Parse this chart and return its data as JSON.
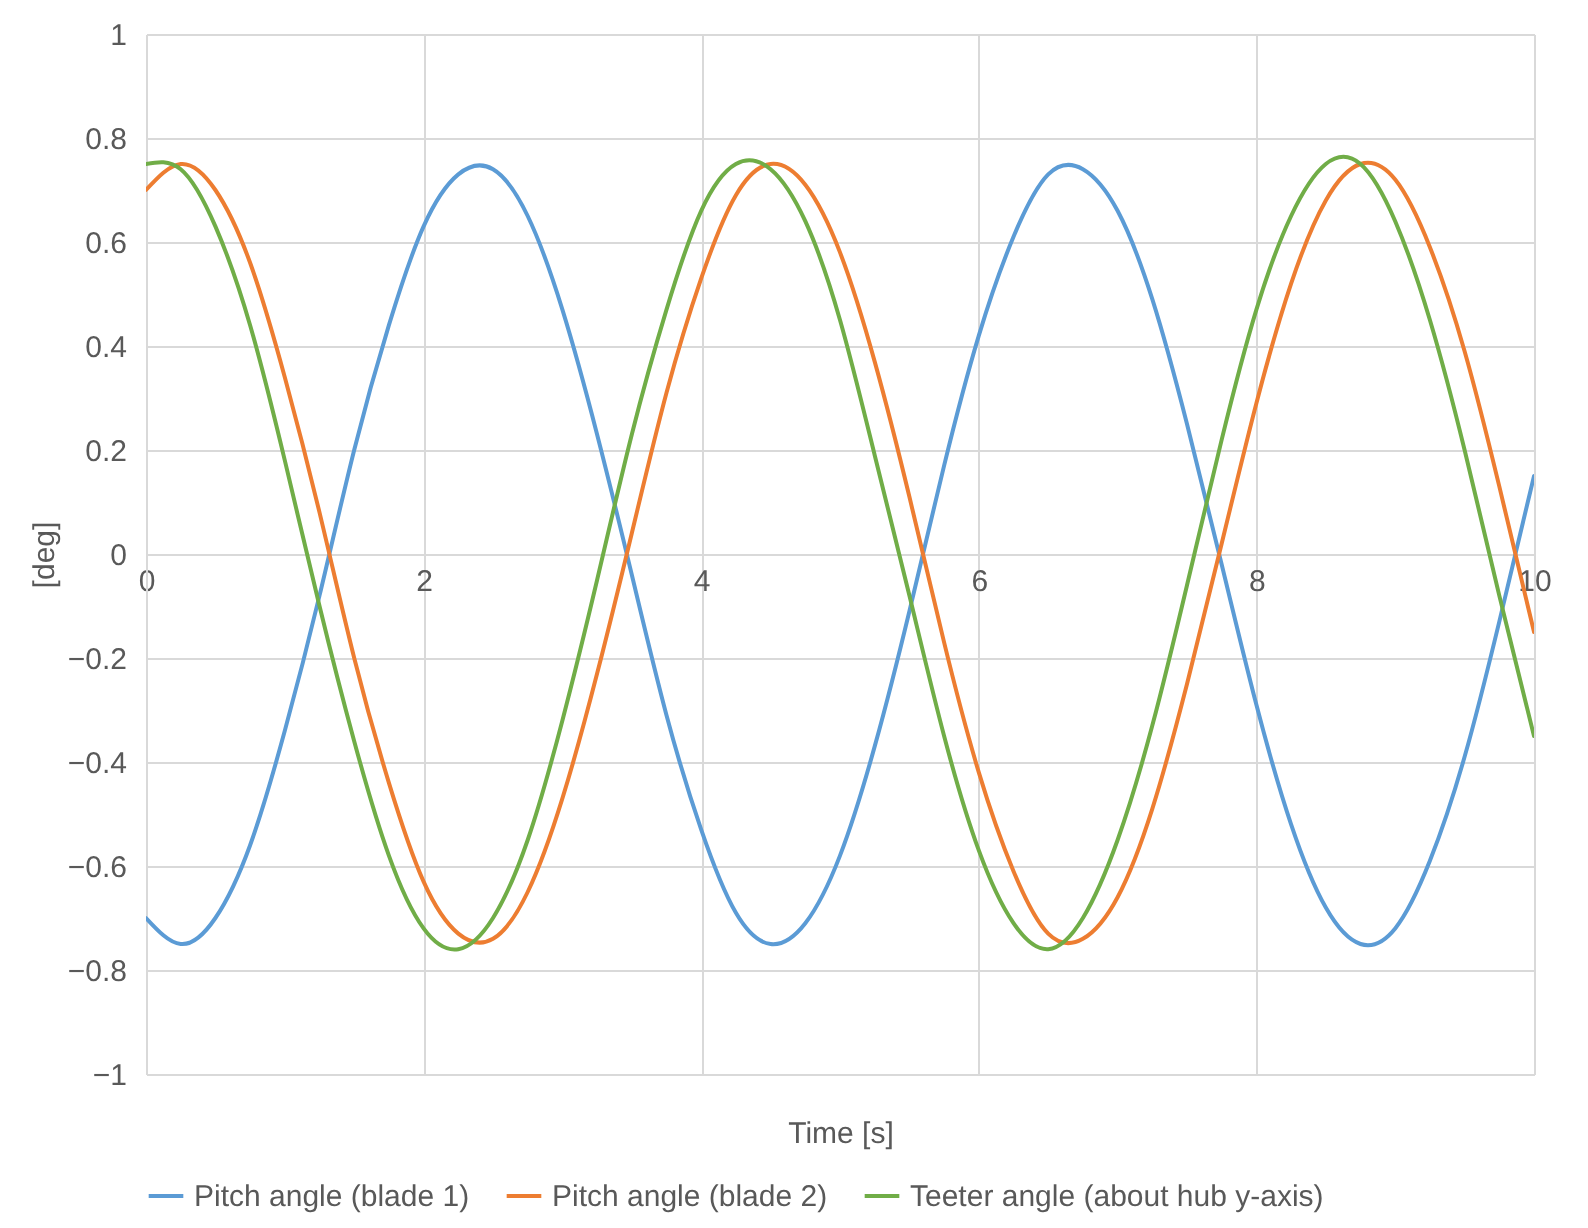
{
  "chart_data": {
    "type": "line",
    "xlabel": "Time [s]",
    "ylabel": "[deg]",
    "x": [
      0,
      0.25,
      0.5,
      0.75,
      1,
      1.25,
      1.5,
      1.75,
      2,
      2.25,
      2.5,
      2.75,
      3,
      3.25,
      3.5,
      3.75,
      4,
      4.25,
      4.5,
      4.75,
      5,
      5.25,
      5.5,
      5.75,
      6,
      6.25,
      6.5,
      6.75,
      7,
      7.25,
      7.5,
      7.75,
      8,
      8.25,
      8.5,
      8.75,
      9,
      9.25,
      9.5,
      9.75,
      10
    ],
    "series": [
      {
        "name": "Pitch angle (blade 1)",
        "color": "#5b9bd5",
        "values": [
          -0.7,
          -0.75,
          -0.7,
          -0.56,
          -0.34,
          -0.08,
          0.2,
          0.44,
          0.63,
          0.73,
          0.74,
          0.65,
          0.47,
          0.23,
          -0.04,
          -0.31,
          -0.53,
          -0.69,
          -0.75,
          -0.71,
          -0.58,
          -0.37,
          -0.11,
          0.17,
          0.42,
          0.61,
          0.73,
          0.74,
          0.66,
          0.49,
          0.25,
          -0.02,
          -0.29,
          -0.52,
          -0.68,
          -0.75,
          -0.72,
          -0.59,
          -0.39,
          -0.13,
          0.15
        ]
      },
      {
        "name": "Pitch angle (blade 2)",
        "color": "#ed7d31",
        "values": [
          0.7,
          0.75,
          0.7,
          0.56,
          0.34,
          0.08,
          -0.2,
          -0.44,
          -0.63,
          -0.73,
          -0.74,
          -0.65,
          -0.47,
          -0.23,
          0.04,
          0.31,
          0.53,
          0.69,
          0.75,
          0.71,
          0.58,
          0.37,
          0.11,
          -0.17,
          -0.42,
          -0.61,
          -0.73,
          -0.74,
          -0.66,
          -0.49,
          -0.25,
          0.02,
          0.29,
          0.52,
          0.68,
          0.75,
          0.72,
          0.59,
          0.39,
          0.13,
          -0.15
        ]
      },
      {
        "name": "Teeter angle (about hub y-axis)",
        "color": "#70ad47",
        "values": [
          0.75,
          0.74,
          0.63,
          0.44,
          0.18,
          -0.1,
          -0.36,
          -0.58,
          -0.72,
          -0.76,
          -0.7,
          -0.55,
          -0.32,
          -0.05,
          0.23,
          0.47,
          0.66,
          0.75,
          0.74,
          0.64,
          0.45,
          0.19,
          -0.08,
          -0.35,
          -0.57,
          -0.71,
          -0.76,
          -0.7,
          -0.55,
          -0.33,
          -0.06,
          0.22,
          0.47,
          0.65,
          0.75,
          0.75,
          0.64,
          0.45,
          0.2,
          -0.08,
          -0.35
        ]
      }
    ],
    "xlim": [
      0,
      10
    ],
    "xticks": [
      0,
      2,
      4,
      6,
      8,
      10
    ],
    "ylim": [
      -1,
      1
    ],
    "yticks": [
      -1,
      -0.8,
      -0.6,
      -0.4,
      -0.2,
      0,
      0.2,
      0.4,
      0.6,
      0.8,
      1
    ],
    "grid": true,
    "legend": "bottom",
    "marker": "none",
    "line_style": "solid"
  }
}
